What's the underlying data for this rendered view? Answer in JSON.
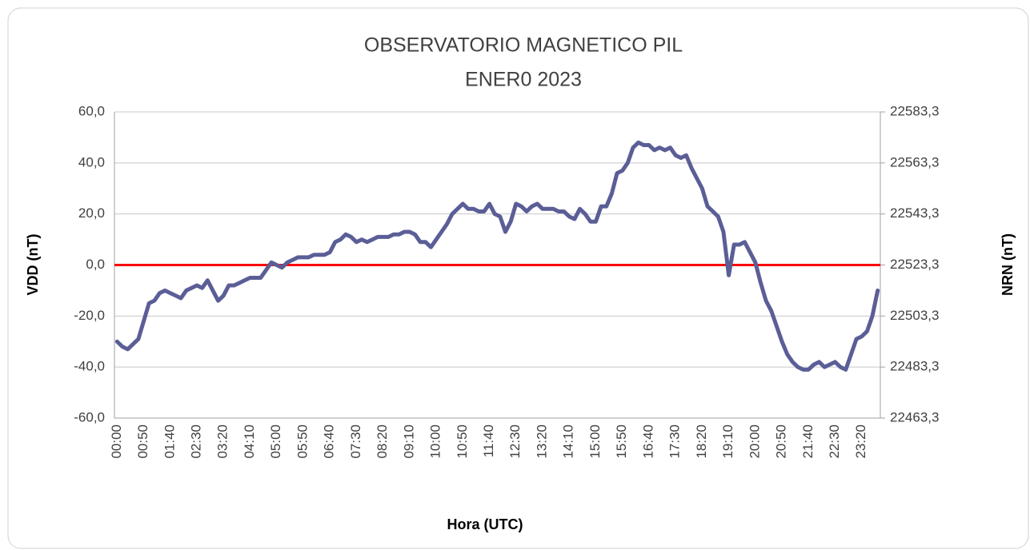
{
  "chart_data": {
    "type": "line",
    "title": "OBSERVATORIO MAGNETICO PIL",
    "subtitle": "ENER0 2023",
    "x_label": "Hora (UTC)",
    "y_label": "VDD (nT)",
    "y2_label": "NRN (nT)",
    "categories": [
      "00:00",
      null,
      null,
      null,
      null,
      "00:50",
      null,
      null,
      null,
      null,
      "01:40",
      null,
      null,
      null,
      null,
      "02:30",
      null,
      null,
      null,
      null,
      "03:20",
      null,
      null,
      null,
      null,
      "04:10",
      null,
      null,
      null,
      null,
      "05:00",
      null,
      null,
      null,
      null,
      "05:50",
      null,
      null,
      null,
      null,
      "06:40",
      null,
      null,
      null,
      null,
      "07:30",
      null,
      null,
      null,
      null,
      "08:20",
      null,
      null,
      null,
      null,
      "09:10",
      null,
      null,
      null,
      null,
      "10:00",
      null,
      null,
      null,
      null,
      "10:50",
      null,
      null,
      null,
      null,
      "11:40",
      null,
      null,
      null,
      null,
      "12:30",
      null,
      null,
      null,
      null,
      "13:20",
      null,
      null,
      null,
      null,
      "14:10",
      null,
      null,
      null,
      null,
      "15:00",
      null,
      null,
      null,
      null,
      "15:50",
      null,
      null,
      null,
      null,
      "16:40",
      null,
      null,
      null,
      null,
      "17:30",
      null,
      null,
      null,
      null,
      "18:20",
      null,
      null,
      null,
      null,
      "19:10",
      null,
      null,
      null,
      null,
      "20:00",
      null,
      null,
      null,
      null,
      "20:50",
      null,
      null,
      null,
      null,
      "21:40",
      null,
      null,
      null,
      null,
      "22:30",
      null,
      null,
      null,
      null,
      "23:20",
      null,
      null,
      null
    ],
    "series": [
      {
        "name": "VDD",
        "color": "#5b5e96",
        "values": [
          -30,
          -32,
          -33,
          -31,
          -29,
          -22,
          -15,
          -14,
          -11,
          -10,
          -11,
          -12,
          -13,
          -10,
          -9,
          -8,
          -9,
          -6,
          -10,
          -14,
          -12,
          -8,
          -8,
          -7,
          -6,
          -5,
          -5,
          -5,
          -2,
          1,
          0,
          -1,
          1,
          2,
          3,
          3,
          3,
          4,
          4,
          4,
          5,
          9,
          10,
          12,
          11,
          9,
          10,
          9,
          10,
          11,
          11,
          11,
          12,
          12,
          13,
          13,
          12,
          9,
          9,
          7,
          10,
          13,
          16,
          20,
          22,
          24,
          22,
          22,
          21,
          21,
          24,
          20,
          19,
          13,
          17,
          24,
          23,
          21,
          23,
          24,
          22,
          22,
          22,
          21,
          21,
          19,
          18,
          22,
          20,
          17,
          17,
          23,
          23,
          28,
          36,
          37,
          40,
          46,
          48,
          47,
          47,
          45,
          46,
          45,
          46,
          43,
          42,
          43,
          38,
          34,
          30,
          23,
          21,
          19,
          13,
          -4,
          8,
          8,
          9,
          5,
          1,
          -7,
          -14,
          -18,
          -24,
          -30,
          -35,
          -38,
          -40,
          -41,
          -41,
          -39,
          -38,
          -40,
          -39,
          -38,
          -40,
          -41,
          -35,
          -29,
          -28,
          -26,
          -20,
          -10
        ]
      }
    ],
    "reference_line": {
      "value": 0,
      "color": "#ff0000"
    },
    "ylim": [
      -60,
      60
    ],
    "yticks": [
      {
        "value": -60,
        "label": "-60,0"
      },
      {
        "value": -40,
        "label": "-40,0"
      },
      {
        "value": -20,
        "label": "-20,0"
      },
      {
        "value": 0,
        "label": "0,0"
      },
      {
        "value": 20,
        "label": "20,0"
      },
      {
        "value": 40,
        "label": "40,0"
      },
      {
        "value": 60,
        "label": "60,0"
      }
    ],
    "y2lim": [
      22463.3,
      22583.3
    ],
    "y2ticks": [
      {
        "value": 22463.3,
        "label": "22463,3"
      },
      {
        "value": 22483.3,
        "label": "22483,3"
      },
      {
        "value": 22503.3,
        "label": "22503,3"
      },
      {
        "value": 22523.3,
        "label": "22523,3"
      },
      {
        "value": 22543.3,
        "label": "22543,3"
      },
      {
        "value": 22563.3,
        "label": "22563,3"
      },
      {
        "value": 22583.3,
        "label": "22583,3"
      }
    ],
    "grid": true
  }
}
